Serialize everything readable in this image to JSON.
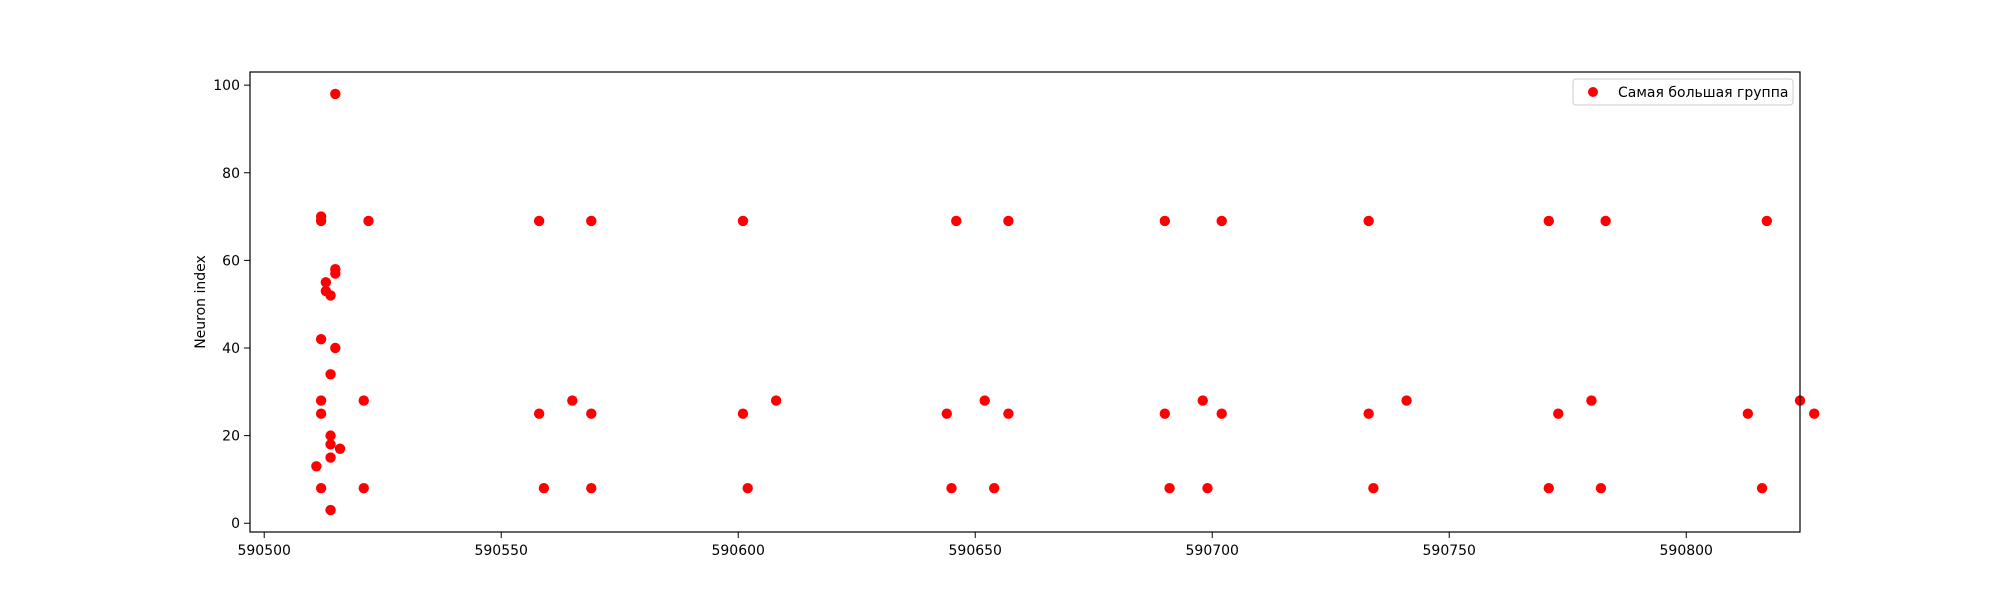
{
  "chart_data": {
    "type": "scatter",
    "title": "",
    "xlabel": "",
    "ylabel": "Neuron index",
    "xlim": [
      590497,
      590824
    ],
    "ylim": [
      -2,
      103
    ],
    "xticks": [
      590500,
      590550,
      590600,
      590650,
      590700,
      590750,
      590800
    ],
    "xtick_labels": [
      "590500",
      "590550",
      "590600",
      "590650",
      "590700",
      "590750",
      "590800"
    ],
    "yticks": [
      0,
      20,
      40,
      60,
      80,
      100
    ],
    "ytick_labels": [
      "0",
      "20",
      "40",
      "60",
      "80",
      "100"
    ],
    "grid": false,
    "legend": {
      "placement": "top-right",
      "entries": [
        "Самая большая группа"
      ]
    },
    "series": [
      {
        "name": "Самая большая группа",
        "color": "#ff0000",
        "points": [
          [
            590515,
            98
          ],
          [
            590512,
            70
          ],
          [
            590512,
            69
          ],
          [
            590522,
            69
          ],
          [
            590515,
            58
          ],
          [
            590515,
            57
          ],
          [
            590513,
            55
          ],
          [
            590513,
            53
          ],
          [
            590514,
            52
          ],
          [
            590512,
            42
          ],
          [
            590515,
            40
          ],
          [
            590514,
            34
          ],
          [
            590512,
            28
          ],
          [
            590521,
            28
          ],
          [
            590512,
            25
          ],
          [
            590514,
            20
          ],
          [
            590514,
            18
          ],
          [
            590516,
            17
          ],
          [
            590514,
            15
          ],
          [
            590511,
            13
          ],
          [
            590512,
            8
          ],
          [
            590521,
            8
          ],
          [
            590514,
            3
          ],
          [
            590558,
            69
          ],
          [
            590569,
            69
          ],
          [
            590558,
            25
          ],
          [
            590565,
            28
          ],
          [
            590569,
            25
          ],
          [
            590559,
            8
          ],
          [
            590569,
            8
          ],
          [
            590601,
            69
          ],
          [
            590601,
            25
          ],
          [
            590608,
            28
          ],
          [
            590602,
            8
          ],
          [
            590646,
            69
          ],
          [
            590657,
            69
          ],
          [
            590644,
            25
          ],
          [
            590652,
            28
          ],
          [
            590657,
            25
          ],
          [
            590645,
            8
          ],
          [
            590654,
            8
          ],
          [
            590690,
            69
          ],
          [
            590702,
            69
          ],
          [
            590690,
            25
          ],
          [
            590698,
            28
          ],
          [
            590702,
            25
          ],
          [
            590691,
            8
          ],
          [
            590699,
            8
          ],
          [
            590733,
            69
          ],
          [
            590733,
            25
          ],
          [
            590741,
            28
          ],
          [
            590734,
            8
          ],
          [
            590771,
            69
          ],
          [
            590783,
            69
          ],
          [
            590773,
            25
          ],
          [
            590780,
            28
          ],
          [
            590771,
            8
          ],
          [
            590782,
            8
          ],
          [
            590817,
            69
          ],
          [
            590813,
            25
          ],
          [
            590824,
            28
          ],
          [
            590827,
            25
          ],
          [
            590816,
            8
          ]
        ]
      }
    ]
  }
}
